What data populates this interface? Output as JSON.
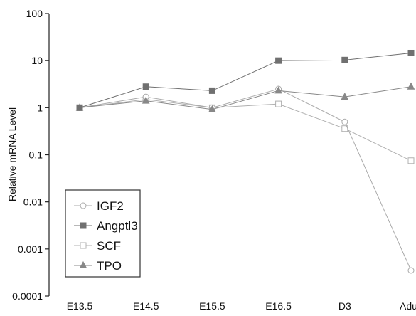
{
  "chart_data": {
    "type": "line",
    "title": "",
    "xlabel": "",
    "ylabel": "Relative mRNA Level",
    "y_scale": "log",
    "ylim": [
      0.0001,
      100
    ],
    "categories": [
      "E13.5",
      "E14.5",
      "E15.5",
      "E16.5",
      "D3",
      "Adult"
    ],
    "y_ticks": [
      "100",
      "10",
      "1",
      "0.1",
      "0.01",
      "0.001",
      "0.0001"
    ],
    "y_tick_values": [
      100,
      10,
      1,
      0.1,
      0.01,
      0.001,
      0.0001
    ],
    "grid": false,
    "legend_position": "bottom-left",
    "series": [
      {
        "name": "IGF2",
        "marker": "circle-open",
        "color": "#aaaaaa",
        "values": [
          1,
          1.7,
          1.0,
          2.5,
          0.5,
          0.00035
        ]
      },
      {
        "name": "Angptl3",
        "marker": "square-filled",
        "color": "#707070",
        "values": [
          1,
          2.8,
          2.3,
          10,
          10.3,
          14.5
        ]
      },
      {
        "name": "SCF",
        "marker": "square-open",
        "color": "#b0b0b0",
        "values": [
          1,
          1.5,
          1.0,
          1.2,
          0.36,
          0.075
        ]
      },
      {
        "name": "TPO",
        "marker": "triangle-filled",
        "color": "#888888",
        "values": [
          1,
          1.4,
          0.92,
          2.3,
          1.7,
          2.8
        ]
      }
    ]
  }
}
